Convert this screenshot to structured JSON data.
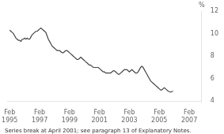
{
  "chart_data": {
    "type": "line",
    "ylabel": "%",
    "footnote": "Series break at April 2001; see paragraph 13 of Explanatory Notes.",
    "color": "#444444",
    "grid": false,
    "x": [
      0,
      1,
      2,
      3,
      4,
      5,
      6,
      7,
      8,
      9,
      10,
      11,
      12,
      13,
      14,
      15,
      16,
      17,
      18,
      19,
      20,
      21,
      22,
      23,
      24,
      25,
      26,
      27,
      28,
      29,
      30,
      31,
      32,
      33,
      34,
      35,
      36,
      37,
      38,
      39,
      40,
      41,
      42,
      43,
      44,
      45,
      46,
      47,
      48,
      49,
      50,
      51,
      52,
      53,
      54,
      55,
      56,
      57,
      58,
      59,
      60,
      61,
      62,
      63,
      64,
      65,
      66,
      67,
      68,
      69,
      70,
      71,
      72,
      73,
      74,
      75,
      76,
      77,
      78,
      79,
      80,
      81,
      82,
      83,
      84,
      85,
      86,
      87,
      88,
      89,
      90,
      91,
      92,
      93,
      94,
      95,
      96,
      97,
      98,
      99,
      100,
      101,
      102,
      103,
      104,
      105,
      106,
      107,
      108,
      109,
      110,
      111,
      112,
      113,
      114,
      115,
      116,
      117,
      118,
      119,
      120,
      121,
      122,
      123,
      124,
      125,
      126,
      127,
      128,
      129,
      130,
      131
    ],
    "values": [
      10.3,
      10.2,
      10.1,
      10.0,
      9.8,
      9.6,
      9.5,
      9.4,
      9.4,
      9.3,
      9.5,
      9.5,
      9.6,
      9.5,
      9.6,
      9.5,
      9.5,
      9.7,
      9.9,
      10.0,
      10.1,
      10.2,
      10.2,
      10.3,
      10.4,
      10.5,
      10.4,
      10.3,
      10.2,
      10.1,
      9.8,
      9.5,
      9.3,
      9.1,
      8.9,
      8.8,
      8.7,
      8.6,
      8.5,
      8.5,
      8.5,
      8.4,
      8.3,
      8.3,
      8.4,
      8.5,
      8.5,
      8.4,
      8.3,
      8.2,
      8.1,
      8.0,
      7.9,
      7.8,
      7.7,
      7.7,
      7.8,
      7.9,
      7.8,
      7.7,
      7.6,
      7.5,
      7.4,
      7.3,
      7.2,
      7.2,
      7.1,
      7.0,
      7.0,
      7.0,
      7.0,
      7.0,
      6.9,
      6.8,
      6.7,
      6.6,
      6.6,
      6.5,
      6.5,
      6.5,
      6.5,
      6.5,
      6.6,
      6.7,
      6.7,
      6.6,
      6.5,
      6.4,
      6.4,
      6.5,
      6.6,
      6.7,
      6.8,
      6.8,
      6.8,
      6.7,
      6.6,
      6.7,
      6.8,
      6.7,
      6.6,
      6.5,
      6.5,
      6.6,
      6.8,
      7.0,
      7.1,
      7.0,
      6.8,
      6.6,
      6.4,
      6.2,
      6.0,
      5.8,
      5.7,
      5.6,
      5.5,
      5.4,
      5.3,
      5.2,
      5.1,
      5.0,
      5.0,
      5.1,
      5.2,
      5.1,
      5.0,
      4.9,
      4.85,
      4.8,
      4.85,
      4.9
    ],
    "xlim": [
      -2,
      154
    ],
    "xticks": [
      {
        "value": 0,
        "label": "Feb\n1995"
      },
      {
        "value": 24,
        "label": "Feb\n1997"
      },
      {
        "value": 48,
        "label": "Feb\n1999"
      },
      {
        "value": 72,
        "label": "Feb\n2001"
      },
      {
        "value": 96,
        "label": "Feb\n2003"
      },
      {
        "value": 120,
        "label": "Feb\n2005"
      },
      {
        "value": 144,
        "label": "Feb\n2007"
      }
    ],
    "ylim": [
      4,
      12
    ],
    "yticks": [
      4,
      6,
      8,
      10,
      12
    ]
  }
}
